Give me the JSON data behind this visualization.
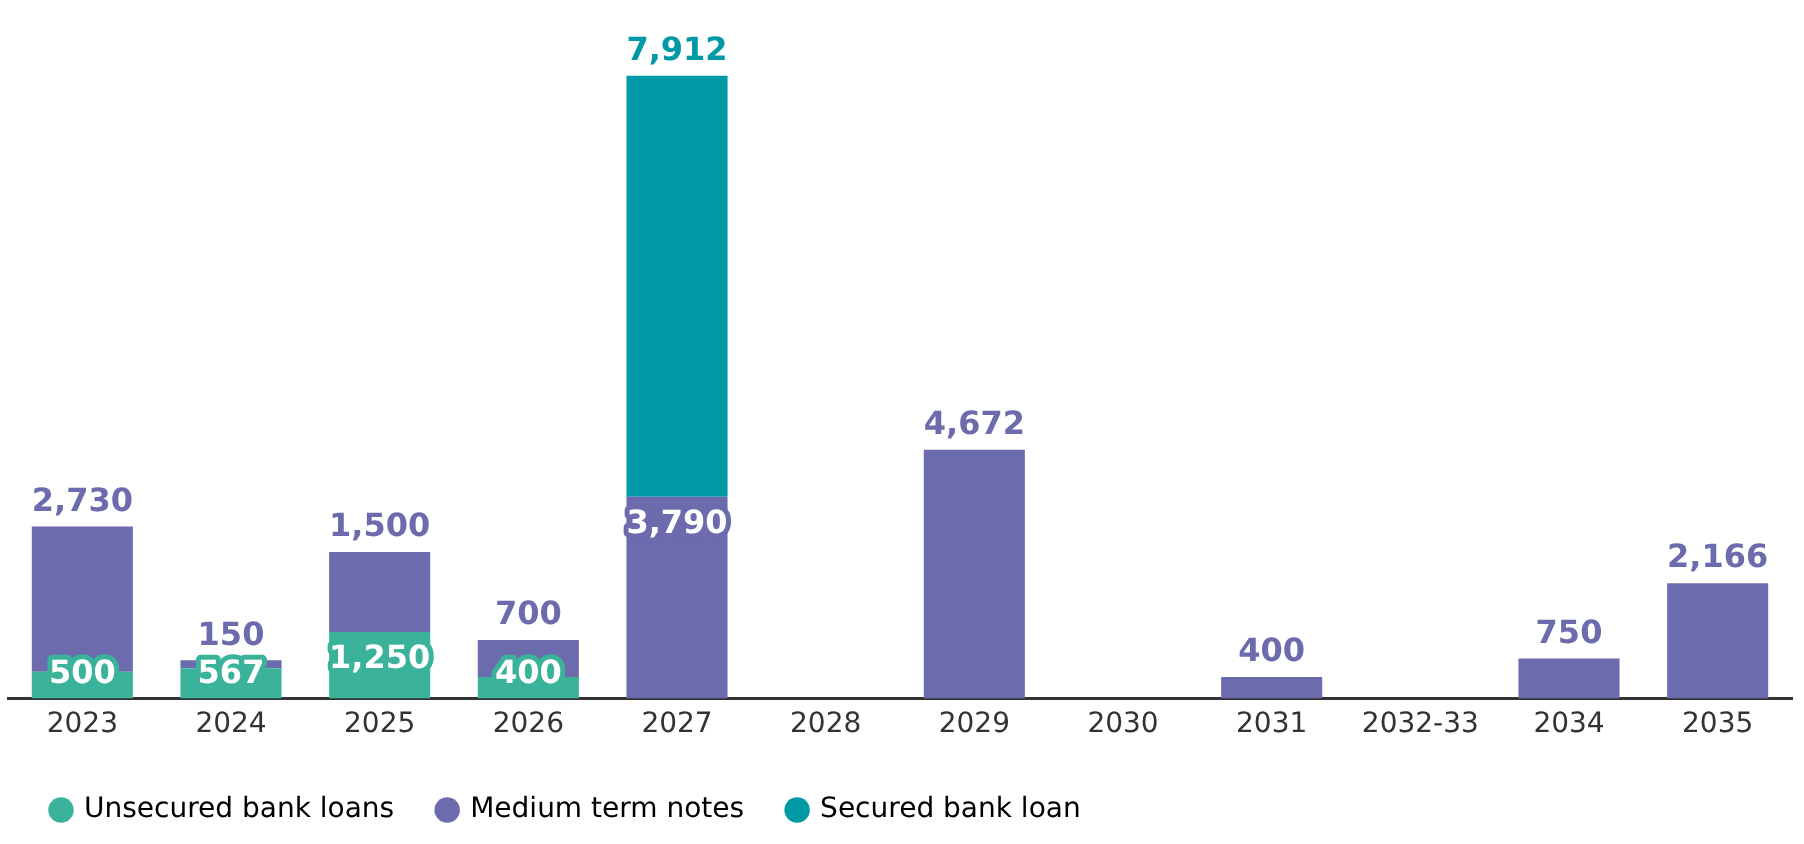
{
  "chart_data": {
    "type": "bar",
    "stacked": true,
    "tick_labels": "x",
    "grid": false,
    "legend": "bottom left",
    "categories": [
      "2023",
      "2024",
      "2025",
      "2026",
      "2027",
      "2028",
      "2029",
      "2030",
      "2031",
      "2032-33",
      "2034",
      "2035"
    ],
    "series": [
      {
        "name": "Unsecured bank loans",
        "color": "#3bb39a",
        "values": [
          500,
          567,
          1250,
          400,
          null,
          null,
          null,
          null,
          null,
          null,
          null,
          null
        ],
        "value_labels": [
          "500",
          "567",
          "1,250",
          "400",
          null,
          null,
          null,
          null,
          null,
          null,
          null,
          null
        ]
      },
      {
        "name": "Medium term notes",
        "color": "#6c6bad",
        "values": [
          2730,
          150,
          1500,
          700,
          3790,
          null,
          4672,
          null,
          400,
          null,
          750,
          2166
        ],
        "value_labels": [
          "2,730",
          "150",
          "1,500",
          "700",
          "3,790",
          null,
          "4,672",
          null,
          "400",
          null,
          "750",
          "2,166"
        ]
      },
      {
        "name": "Secured bank loan",
        "color": "#0099a6",
        "values": [
          null,
          null,
          null,
          null,
          7912,
          null,
          null,
          null,
          null,
          null,
          null,
          null
        ],
        "value_labels": [
          null,
          null,
          null,
          null,
          "7,912",
          null,
          null,
          null,
          null,
          null,
          null,
          null
        ]
      }
    ]
  }
}
